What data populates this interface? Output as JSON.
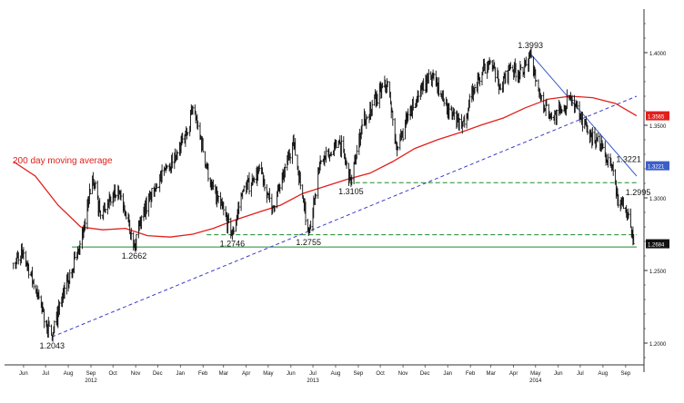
{
  "chart_data": {
    "type": "line",
    "subtype": "ohlc-bars",
    "series": [
      {
        "kind": "price",
        "color": "#111111",
        "points": [
          [
            "2012-06-01",
            1.255
          ],
          [
            "2012-06-15",
            1.262
          ],
          [
            "2012-07-01",
            1.238
          ],
          [
            "2012-07-15",
            1.215
          ],
          [
            "2012-07-24",
            1.2043
          ],
          [
            "2012-08-05",
            1.23
          ],
          [
            "2012-08-20",
            1.248
          ],
          [
            "2012-09-01",
            1.27
          ],
          [
            "2012-09-10",
            1.295
          ],
          [
            "2012-09-17",
            1.315
          ],
          [
            "2012-09-28",
            1.288
          ],
          [
            "2012-10-08",
            1.295
          ],
          [
            "2012-10-22",
            1.305
          ],
          [
            "2012-11-01",
            1.288
          ],
          [
            "2012-11-13",
            1.2662
          ],
          [
            "2012-11-25",
            1.29
          ],
          [
            "2012-12-10",
            1.305
          ],
          [
            "2012-12-25",
            1.32
          ],
          [
            "2013-01-10",
            1.33
          ],
          [
            "2013-01-25",
            1.345
          ],
          [
            "2013-02-01",
            1.362
          ],
          [
            "2013-02-10",
            1.345
          ],
          [
            "2013-02-25",
            1.31
          ],
          [
            "2013-03-10",
            1.296
          ],
          [
            "2013-03-27",
            1.2746
          ],
          [
            "2013-04-10",
            1.305
          ],
          [
            "2013-04-25",
            1.312
          ],
          [
            "2013-05-05",
            1.32
          ],
          [
            "2013-05-20",
            1.292
          ],
          [
            "2013-06-05",
            1.315
          ],
          [
            "2013-06-18",
            1.34
          ],
          [
            "2013-07-01",
            1.3
          ],
          [
            "2013-07-09",
            1.2755
          ],
          [
            "2013-07-25",
            1.325
          ],
          [
            "2013-08-10",
            1.33
          ],
          [
            "2013-08-20",
            1.34
          ],
          [
            "2013-09-05",
            1.3105
          ],
          [
            "2013-09-20",
            1.35
          ],
          [
            "2013-10-05",
            1.365
          ],
          [
            "2013-10-25",
            1.38
          ],
          [
            "2013-11-07",
            1.333
          ],
          [
            "2013-11-25",
            1.36
          ],
          [
            "2013-12-10",
            1.375
          ],
          [
            "2013-12-27",
            1.385
          ],
          [
            "2014-01-10",
            1.365
          ],
          [
            "2014-02-03",
            1.348
          ],
          [
            "2014-02-20",
            1.375
          ],
          [
            "2014-03-13",
            1.395
          ],
          [
            "2014-03-28",
            1.375
          ],
          [
            "2014-04-10",
            1.39
          ],
          [
            "2014-04-28",
            1.385
          ],
          [
            "2014-05-08",
            1.3993
          ],
          [
            "2014-05-20",
            1.372
          ],
          [
            "2014-06-05",
            1.355
          ],
          [
            "2014-06-20",
            1.36
          ],
          [
            "2014-07-01",
            1.37
          ],
          [
            "2014-07-15",
            1.355
          ],
          [
            "2014-07-25",
            1.345
          ],
          [
            "2014-08-10",
            1.338
          ],
          [
            "2014-08-20",
            1.325
          ],
          [
            "2014-08-28",
            1.3221
          ],
          [
            "2014-09-05",
            1.295
          ],
          [
            "2014-09-10",
            1.2995
          ],
          [
            "2014-09-16",
            1.29
          ],
          [
            "2014-09-22",
            1.28
          ],
          [
            "2014-09-26",
            1.2684
          ]
        ]
      },
      {
        "name": "200 day moving average",
        "kind": "sma",
        "color": "#e0201b",
        "points": [
          [
            "2012-06-01",
            1.325
          ],
          [
            "2012-07-01",
            1.315
          ],
          [
            "2012-08-01",
            1.295
          ],
          [
            "2012-09-01",
            1.28
          ],
          [
            "2012-10-01",
            1.278
          ],
          [
            "2012-11-01",
            1.279
          ],
          [
            "2012-12-01",
            1.274
          ],
          [
            "2013-01-01",
            1.273
          ],
          [
            "2013-02-01",
            1.275
          ],
          [
            "2013-03-01",
            1.279
          ],
          [
            "2013-04-01",
            1.285
          ],
          [
            "2013-05-01",
            1.29
          ],
          [
            "2013-06-01",
            1.295
          ],
          [
            "2013-07-01",
            1.303
          ],
          [
            "2013-08-01",
            1.308
          ],
          [
            "2013-09-01",
            1.313
          ],
          [
            "2013-10-01",
            1.317
          ],
          [
            "2013-11-01",
            1.325
          ],
          [
            "2013-12-01",
            1.334
          ],
          [
            "2014-01-01",
            1.34
          ],
          [
            "2014-02-01",
            1.345
          ],
          [
            "2014-03-01",
            1.35
          ],
          [
            "2014-04-01",
            1.355
          ],
          [
            "2014-05-01",
            1.362
          ],
          [
            "2014-06-01",
            1.368
          ],
          [
            "2014-07-01",
            1.37
          ],
          [
            "2014-08-01",
            1.369
          ],
          [
            "2014-09-01",
            1.365
          ],
          [
            "2014-09-30",
            1.3565
          ]
        ]
      }
    ],
    "trendlines": [
      {
        "kind": "support",
        "style": "dashed",
        "color": "#3b3bc8",
        "from": [
          "2012-07-24",
          1.2043
        ],
        "to": [
          "2014-09-30",
          1.37
        ]
      },
      {
        "kind": "resistance",
        "style": "solid",
        "color": "#3b5fc8",
        "from": [
          "2014-05-08",
          1.3993
        ],
        "to": [
          "2014-09-30",
          1.315
        ]
      }
    ],
    "hlines": [
      {
        "y": 1.3105,
        "style": "dashed",
        "color": "#1a8a2a",
        "from": "2013-09-01",
        "to": "2014-09-30"
      },
      {
        "y": 1.2746,
        "style": "dashed",
        "color": "#1a8a2a",
        "from": "2013-02-20",
        "to": "2014-09-30"
      },
      {
        "y": 1.2662,
        "style": "solid",
        "color": "#1a8a2a",
        "from": "2012-08-20",
        "to": "2014-09-30"
      }
    ],
    "annotations": [
      {
        "text": "1.2043",
        "x": "2012-07-24",
        "y": 1.2043,
        "pos": "below"
      },
      {
        "text": "1.2662",
        "x": "2012-11-13",
        "y": 1.2662,
        "pos": "below"
      },
      {
        "text": "1.2746",
        "x": "2013-03-27",
        "y": 1.2746,
        "pos": "below"
      },
      {
        "text": "1.2755",
        "x": "2013-07-09",
        "y": 1.2755,
        "pos": "below"
      },
      {
        "text": "1.3105",
        "x": "2013-09-05",
        "y": 1.3105,
        "pos": "below"
      },
      {
        "text": "1.3993",
        "x": "2014-05-08",
        "y": 1.3993,
        "pos": "above"
      },
      {
        "text": "1.3221",
        "x": "2014-08-28",
        "y": 1.3221,
        "pos": "right"
      },
      {
        "text": "1.2995",
        "x": "2014-09-10",
        "y": 1.2995,
        "pos": "right"
      }
    ],
    "ma_label": {
      "text": "200 day moving average",
      "color": "#e0201b"
    },
    "y_axis": {
      "position": "right",
      "range": [
        1.185,
        1.43
      ],
      "ticks": [
        {
          "value": 1.2,
          "label": "1.2000"
        },
        {
          "value": 1.25,
          "label": "1.2500"
        },
        {
          "value": 1.3,
          "label": "1.3000"
        },
        {
          "value": 1.35,
          "label": "1.3500"
        },
        {
          "value": 1.4,
          "label": "1.4000"
        }
      ],
      "flags": [
        {
          "value": 1.3565,
          "label": "1.3565",
          "bg": "#e0201b",
          "fg": "#ffffff"
        },
        {
          "value": 1.3221,
          "label": "1.3221",
          "bg": "#3b5fc8",
          "fg": "#ffffff"
        },
        {
          "value": 1.2684,
          "label": "1.2684",
          "bg": "#111111",
          "fg": "#ffffff"
        }
      ]
    },
    "x_axis": {
      "range": [
        "2012-05-20",
        "2014-10-10"
      ],
      "months": [
        {
          "date": "2012-06-15",
          "label": "Jun"
        },
        {
          "date": "2012-07-15",
          "label": "Jul"
        },
        {
          "date": "2012-08-15",
          "label": "Aug"
        },
        {
          "date": "2012-09-15",
          "label": "Sep"
        },
        {
          "date": "2012-10-15",
          "label": "Oct"
        },
        {
          "date": "2012-11-15",
          "label": "Nov"
        },
        {
          "date": "2012-12-15",
          "label": "Dec"
        },
        {
          "date": "2013-01-15",
          "label": "Jan"
        },
        {
          "date": "2013-02-15",
          "label": "Feb"
        },
        {
          "date": "2013-03-15",
          "label": "Mar"
        },
        {
          "date": "2013-04-15",
          "label": "Apr"
        },
        {
          "date": "2013-05-15",
          "label": "May"
        },
        {
          "date": "2013-06-15",
          "label": "Jun"
        },
        {
          "date": "2013-07-15",
          "label": "Jul"
        },
        {
          "date": "2013-08-15",
          "label": "Aug"
        },
        {
          "date": "2013-09-15",
          "label": "Sep"
        },
        {
          "date": "2013-10-15",
          "label": "Oct"
        },
        {
          "date": "2013-11-15",
          "label": "Nov"
        },
        {
          "date": "2013-12-15",
          "label": "Dec"
        },
        {
          "date": "2014-01-15",
          "label": "Jan"
        },
        {
          "date": "2014-02-15",
          "label": "Feb"
        },
        {
          "date": "2014-03-15",
          "label": "Mar"
        },
        {
          "date": "2014-04-15",
          "label": "Apr"
        },
        {
          "date": "2014-05-15",
          "label": "May"
        },
        {
          "date": "2014-06-15",
          "label": "Jun"
        },
        {
          "date": "2014-07-15",
          "label": "Jul"
        },
        {
          "date": "2014-08-15",
          "label": "Aug"
        },
        {
          "date": "2014-09-15",
          "label": "Sep"
        }
      ],
      "years": [
        {
          "date": "2012-09-15",
          "label": "2012"
        },
        {
          "date": "2013-07-15",
          "label": "2013"
        },
        {
          "date": "2014-05-15",
          "label": "2014"
        }
      ]
    },
    "grid": false,
    "legend": "none"
  }
}
